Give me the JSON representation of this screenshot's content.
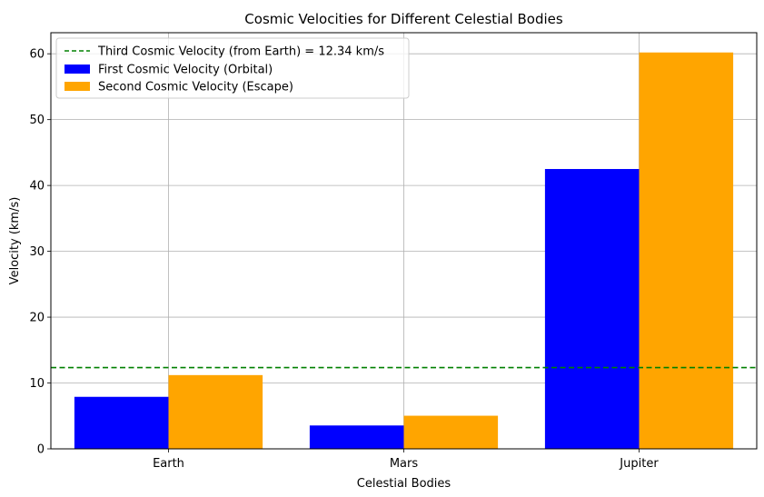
{
  "chart_data": {
    "type": "bar",
    "title": "Cosmic Velocities for Different Celestial Bodies",
    "xlabel": "Celestial Bodies",
    "ylabel": "Velocity (km/s)",
    "categories": [
      "Earth",
      "Mars",
      "Jupiter"
    ],
    "series": [
      {
        "name": "First Cosmic Velocity (Orbital)",
        "values": [
          7.9,
          3.55,
          42.5
        ],
        "color": "#0000ff"
      },
      {
        "name": "Second Cosmic Velocity (Escape)",
        "values": [
          11.2,
          5.03,
          60.2
        ],
        "color": "#ffa500"
      }
    ],
    "reference_line": {
      "name": "Third Cosmic Velocity (from Earth) = 12.34 km/s",
      "value": 12.34,
      "color": "#008000",
      "style": "dashed"
    },
    "ylim": [
      0,
      63.2
    ],
    "yticks": [
      0,
      10,
      20,
      30,
      40,
      50,
      60
    ],
    "grid": true,
    "legend_position": "top-left"
  }
}
